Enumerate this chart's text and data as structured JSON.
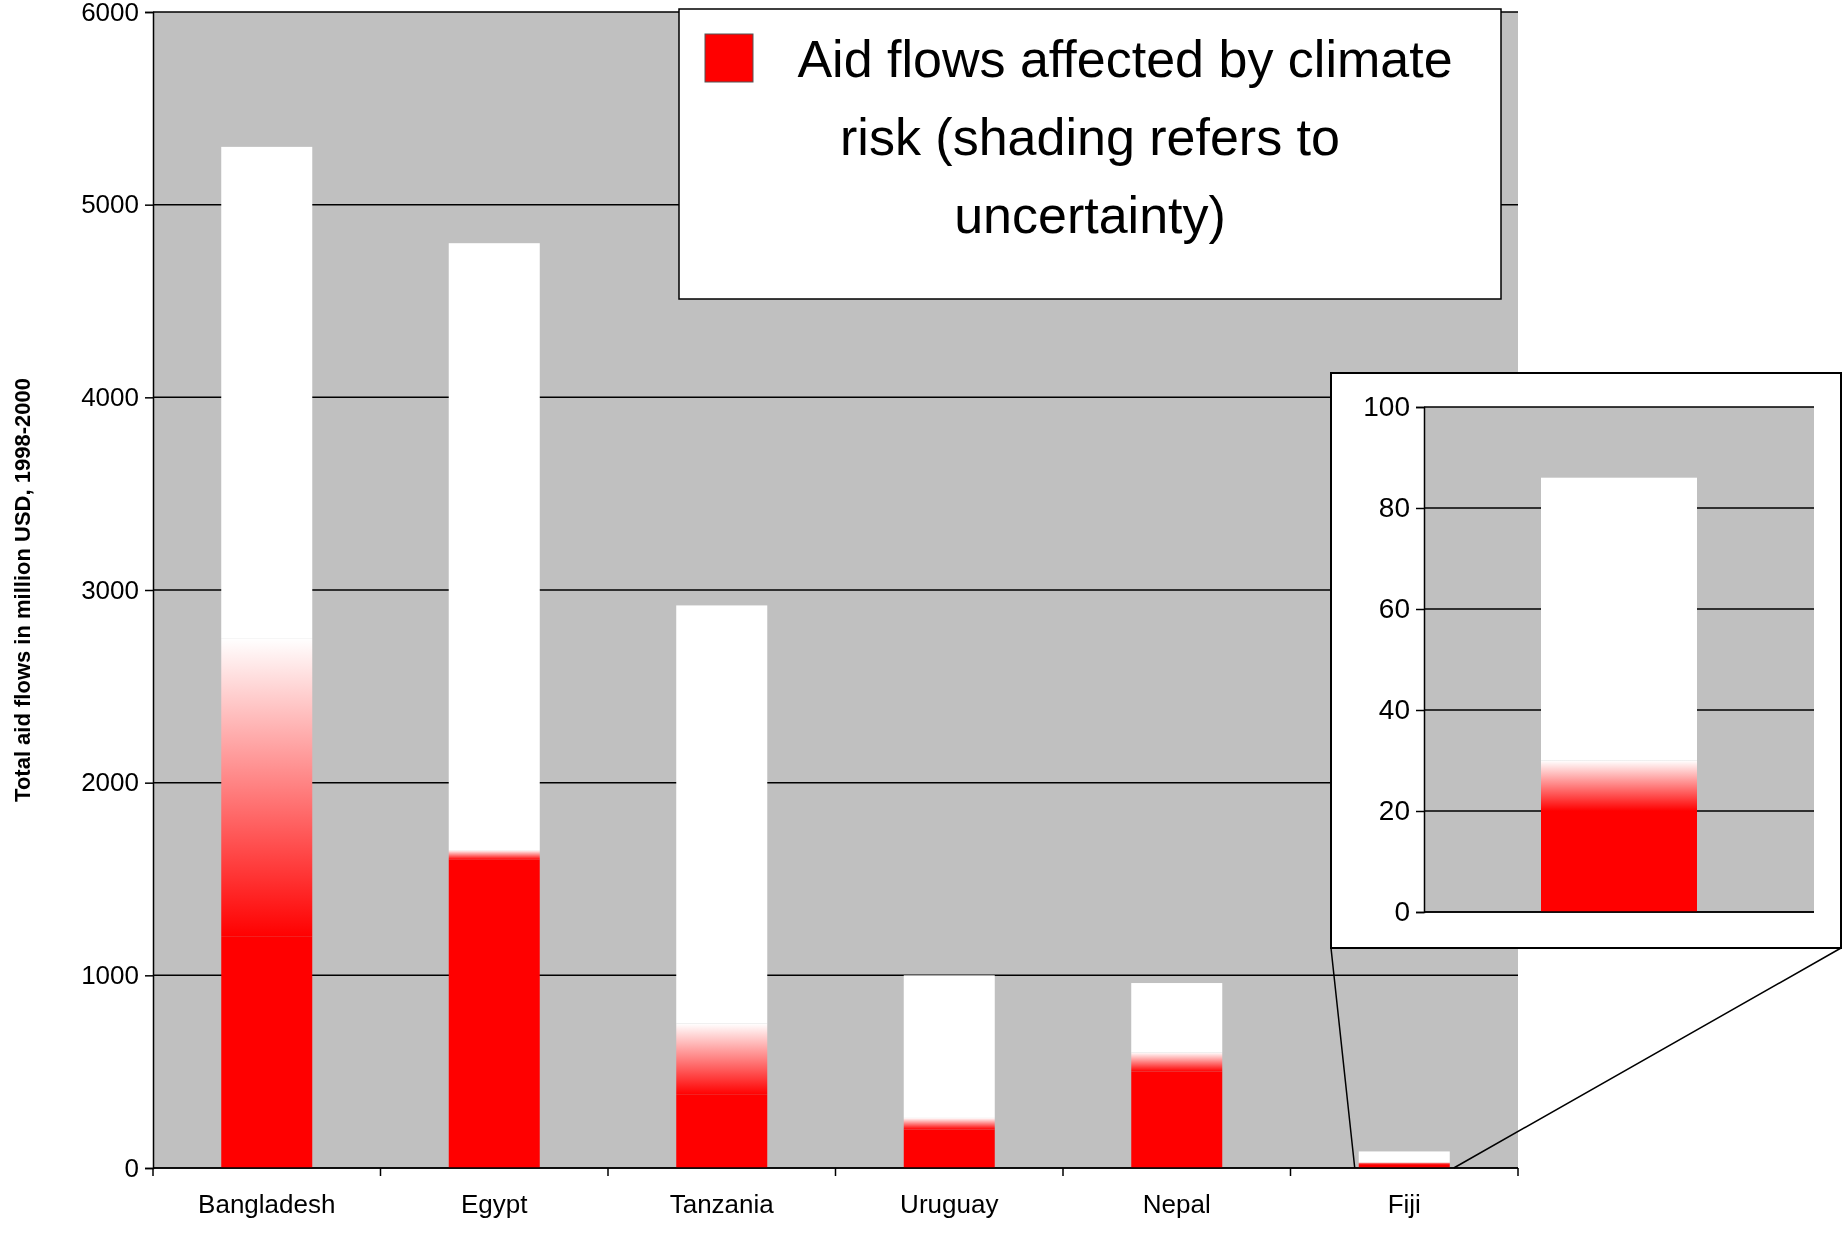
{
  "chart_data": [
    {
      "type": "bar",
      "stacked": true,
      "categories": [
        "Bangladesh",
        "Egypt",
        "Tanzania",
        "Uruguay",
        "Nepal",
        "Fiji"
      ],
      "series": [
        {
          "name": "Aid flows affected by climate risk (shading refers to uncertainty)",
          "color": "#ff0000",
          "values": [
            1200,
            1600,
            380,
            200,
            500,
            20
          ]
        },
        {
          "color": "#ff8080",
          "values": [
            1550,
            50,
            370,
            60,
            100,
            10
          ]
        },
        {
          "color": "#ffffff",
          "values": [
            2550,
            3150,
            2170,
            740,
            360,
            56
          ]
        }
      ],
      "ylabel": "Total aid flows in million USD, 1998-2000",
      "ylim": [
        0,
        6000
      ],
      "yticks": [
        0,
        1000,
        2000,
        3000,
        4000,
        5000,
        6000
      ],
      "grid": "y",
      "legend": "top right"
    },
    {
      "type": "bar",
      "stacked": true,
      "categories": [
        null
      ],
      "series": [
        {
          "color": "#ff0000",
          "values": [
            20
          ]
        },
        {
          "color": "#ff8080",
          "values": [
            10
          ]
        },
        {
          "color": "#ffffff",
          "values": [
            56
          ]
        }
      ],
      "ylim": [
        0,
        100
      ],
      "yticks": [
        0,
        20,
        40,
        60,
        80,
        100
      ],
      "grid": "y",
      "tick_labels": "y"
    }
  ]
}
